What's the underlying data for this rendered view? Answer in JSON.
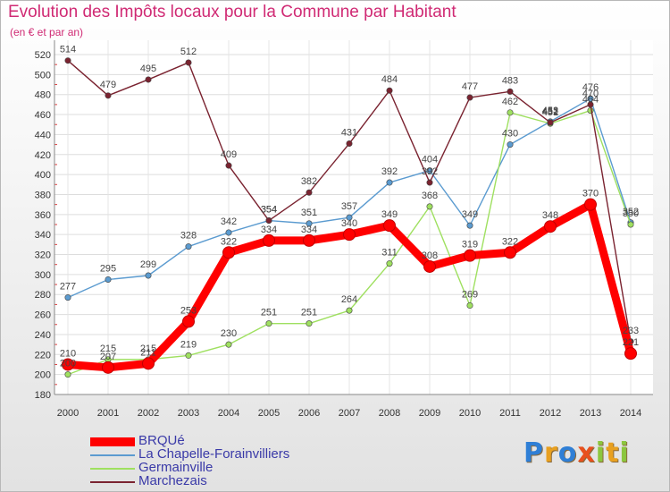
{
  "header": {
    "title": "Evolution des Impôts locaux pour la Commune par Habitant",
    "subtitle": "(en € et par an)"
  },
  "logo": {
    "text": "Proxiti",
    "letters": [
      {
        "ch": "P",
        "color": "#2f7fd6"
      },
      {
        "ch": "r",
        "color": "#e8a020"
      },
      {
        "ch": "o",
        "color": "#2f7fd6"
      },
      {
        "ch": "x",
        "color": "#e8501e"
      },
      {
        "ch": "i",
        "color": "#8cc63e"
      },
      {
        "ch": "t",
        "color": "#e8a020"
      },
      {
        "ch": "i",
        "color": "#8cc63e"
      }
    ]
  },
  "chart_data": {
    "type": "line",
    "title": "Evolution des Impôts locaux pour la Commune par Habitant",
    "subtitle": "(en € et par an)",
    "xlabel": "",
    "ylabel": "",
    "categories": [
      "2000",
      "2001",
      "2002",
      "2003",
      "2004",
      "2005",
      "2006",
      "2007",
      "2008",
      "2009",
      "2010",
      "2011",
      "2012",
      "2013",
      "2014"
    ],
    "ylim": [
      180,
      520
    ],
    "yticks": [
      180,
      200,
      220,
      240,
      260,
      280,
      300,
      320,
      340,
      360,
      380,
      400,
      420,
      440,
      460,
      480,
      500,
      520
    ],
    "grid": true,
    "legend_position": "bottom-left",
    "series": [
      {
        "name": "BRQUé",
        "color": "#ff0000",
        "highlight": true,
        "values": [
          210,
          207,
          211,
          253,
          322,
          334,
          334,
          340,
          349,
          308,
          319,
          322,
          348,
          370,
          221
        ]
      },
      {
        "name": "La Chapelle-Forainvilliers",
        "color": "#5b9bd0",
        "highlight": false,
        "values": [
          277,
          295,
          299,
          328,
          342,
          354,
          351,
          357,
          392,
          404,
          349,
          430,
          453,
          476,
          352
        ]
      },
      {
        "name": "Germainville",
        "color": "#9fe060",
        "highlight": false,
        "values": [
          200,
          215,
          215,
          219,
          230,
          251,
          251,
          264,
          311,
          368,
          269,
          462,
          451,
          464,
          350
        ]
      },
      {
        "name": "Marchezais",
        "color": "#7a2330",
        "highlight": false,
        "values": [
          514,
          479,
          495,
          512,
          409,
          354,
          382,
          431,
          484,
          392,
          477,
          483,
          452,
          470,
          233
        ]
      }
    ]
  }
}
